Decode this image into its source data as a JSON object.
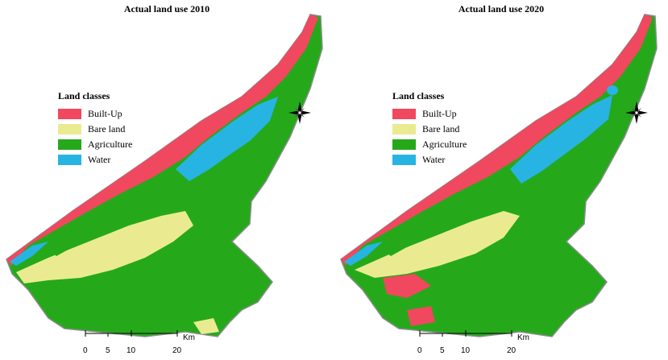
{
  "maps": [
    {
      "title": "Actual land use 2010",
      "scalebar": {
        "ticks": [
          "0",
          "5",
          "10",
          "20"
        ],
        "unit": "Km"
      }
    },
    {
      "title": "Actual land use 2020",
      "scalebar": {
        "ticks": [
          "0",
          "5",
          "10",
          "20"
        ],
        "unit": "Km"
      }
    }
  ],
  "legend": {
    "title": "Land classes",
    "items": [
      {
        "label": "Built-Up",
        "color": "#f0485e"
      },
      {
        "label": "Bare land",
        "color": "#eaeb91"
      },
      {
        "label": "Agriculture",
        "color": "#25a91b"
      },
      {
        "label": "Water",
        "color": "#27b4e3"
      }
    ]
  },
  "colors": {
    "boundary": "#8c8c8c",
    "background": "#ffffff"
  },
  "icons": [
    "north-arrow-icon"
  ]
}
